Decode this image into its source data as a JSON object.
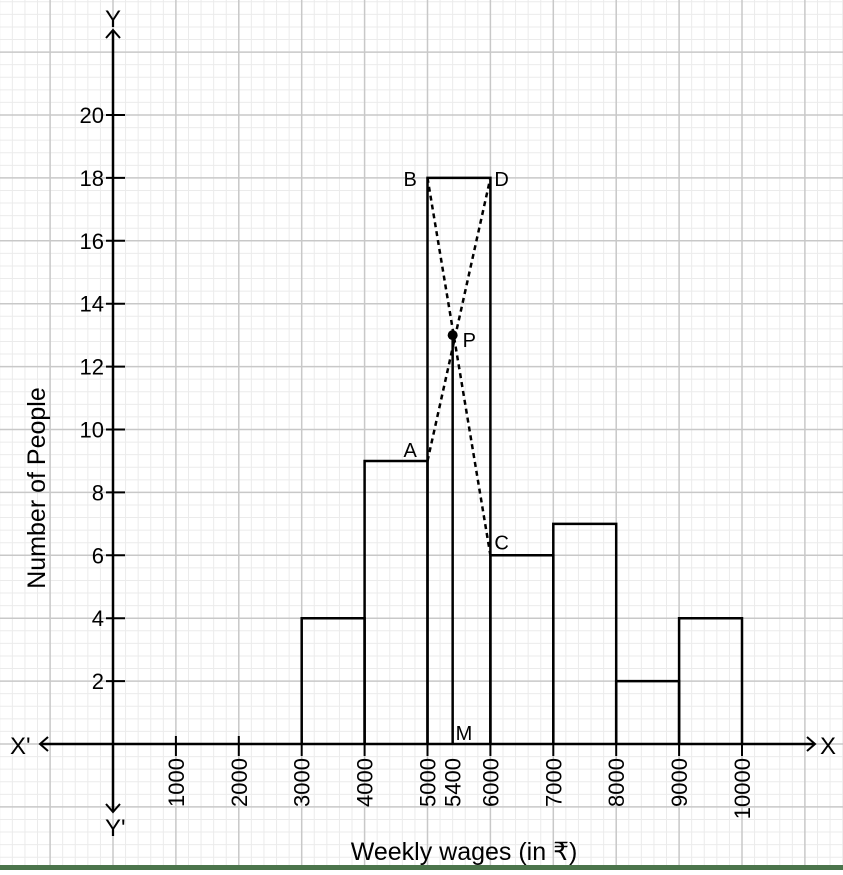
{
  "chart_data": {
    "type": "bar",
    "subtype": "histogram-with-mode-construction",
    "title": "",
    "xlabel": "Weekly wages (in ₹)",
    "ylabel": "Number of People",
    "x_axis_labels": {
      "positive": "X",
      "negative": "X'"
    },
    "y_axis_labels": {
      "positive": "Y",
      "negative": "Y'"
    },
    "x_ticks": [
      1000,
      2000,
      3000,
      4000,
      5000,
      5400,
      6000,
      7000,
      8000,
      9000,
      10000
    ],
    "y_ticks": [
      2,
      4,
      6,
      8,
      10,
      12,
      14,
      16,
      18,
      20
    ],
    "xlim": [
      0,
      10000
    ],
    "ylim": [
      0,
      20
    ],
    "grid": true,
    "categories": [
      "3000-4000",
      "4000-5000",
      "5000-6000",
      "6000-7000",
      "7000-8000",
      "8000-9000",
      "9000-10000"
    ],
    "bins": [
      {
        "from": 3000,
        "to": 4000,
        "value": 4
      },
      {
        "from": 4000,
        "to": 5000,
        "value": 9
      },
      {
        "from": 5000,
        "to": 6000,
        "value": 18
      },
      {
        "from": 6000,
        "to": 7000,
        "value": 6
      },
      {
        "from": 7000,
        "to": 8000,
        "value": 7
      },
      {
        "from": 8000,
        "to": 9000,
        "value": 2
      },
      {
        "from": 9000,
        "to": 10000,
        "value": 4
      }
    ],
    "values": [
      4,
      9,
      18,
      6,
      7,
      2,
      4
    ],
    "construction": {
      "points": [
        {
          "label": "A",
          "x": 5000,
          "y": 9
        },
        {
          "label": "B",
          "x": 5000,
          "y": 18
        },
        {
          "label": "C",
          "x": 6000,
          "y": 6
        },
        {
          "label": "D",
          "x": 6000,
          "y": 18
        },
        {
          "label": "P",
          "x": 5400,
          "y": 13
        },
        {
          "label": "M",
          "x": 5400,
          "y": 0
        }
      ],
      "dashed_lines": [
        [
          "A",
          "D"
        ],
        [
          "B",
          "C"
        ]
      ],
      "solid_lines": [
        [
          "P",
          "M"
        ]
      ],
      "mode": 5400
    },
    "legend": null
  },
  "colors": {
    "line": "#000000",
    "major_grid": "#c8c8c8",
    "minor_grid": "#ebebeb",
    "background": "#ffffff",
    "bottom_bar": "#4b744b"
  }
}
